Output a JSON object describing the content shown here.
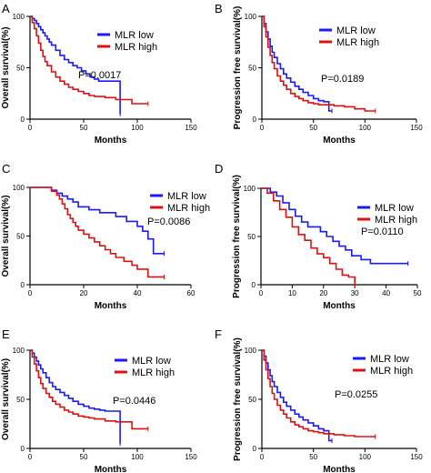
{
  "colors": {
    "low": "#1a1aff",
    "high": "#e01010",
    "axis": "#000000"
  },
  "chart_data": [
    {
      "id": "A",
      "panel_label": "A",
      "type": "line",
      "xlabel": "Months",
      "ylabel": "Overall survival(%)",
      "xlim": [
        0,
        150
      ],
      "ylim": [
        0,
        100
      ],
      "xticks": [
        0,
        50,
        100,
        150
      ],
      "yticks": [
        0,
        50,
        100
      ],
      "xtick_labels": [
        "0",
        "50",
        "100",
        "150"
      ],
      "ytick_labels": [
        "0",
        "50",
        "100"
      ],
      "legend": [
        "MLR low",
        "MLR high"
      ],
      "legend_position": "top-right",
      "p_value": "P=0.0017",
      "series": [
        {
          "name": "MLR low",
          "color_key": "low",
          "x": [
            0,
            2,
            4,
            6,
            8,
            10,
            12,
            14,
            16,
            18,
            20,
            24,
            28,
            32,
            36,
            40,
            44,
            48,
            52,
            56,
            60,
            64,
            84,
            84
          ],
          "y": [
            100,
            98,
            96,
            93,
            90,
            87,
            84,
            81,
            78,
            75,
            72,
            67,
            62,
            58,
            55,
            52,
            50,
            47,
            44,
            41,
            39,
            37,
            37,
            5
          ]
        },
        {
          "name": "MLR high",
          "color_key": "high",
          "x": [
            0,
            2,
            4,
            6,
            8,
            10,
            12,
            14,
            16,
            20,
            24,
            28,
            32,
            36,
            40,
            45,
            50,
            55,
            60,
            70,
            80,
            95,
            110
          ],
          "y": [
            100,
            94,
            88,
            81,
            74,
            67,
            61,
            56,
            52,
            46,
            41,
            37,
            34,
            31,
            29,
            27,
            25,
            23,
            22,
            21,
            19,
            15,
            15
          ]
        }
      ]
    },
    {
      "id": "B",
      "panel_label": "B",
      "type": "line",
      "xlabel": "Months",
      "ylabel": "Progression free survival(%)",
      "xlim": [
        0,
        150
      ],
      "ylim": [
        0,
        100
      ],
      "xticks": [
        0,
        50,
        100,
        150
      ],
      "yticks": [
        0,
        50,
        100
      ],
      "xtick_labels": [
        "0",
        "50",
        "100",
        "150"
      ],
      "ytick_labels": [
        "0",
        "50",
        "100"
      ],
      "legend": [
        "MLR low",
        "MLR high"
      ],
      "legend_position": "top-right",
      "p_value": "P=0.0189",
      "series": [
        {
          "name": "MLR low",
          "color_key": "low",
          "x": [
            0,
            2,
            4,
            6,
            8,
            10,
            12,
            15,
            18,
            21,
            24,
            28,
            32,
            36,
            40,
            45,
            50,
            55,
            60,
            65,
            65,
            68
          ],
          "y": [
            100,
            93,
            85,
            78,
            71,
            65,
            60,
            54,
            49,
            44,
            40,
            36,
            32,
            29,
            26,
            23,
            20,
            18,
            17,
            17,
            8,
            8
          ]
        },
        {
          "name": "MLR high",
          "color_key": "high",
          "x": [
            0,
            2,
            4,
            6,
            8,
            10,
            12,
            15,
            18,
            21,
            24,
            28,
            32,
            36,
            40,
            45,
            50,
            55,
            60,
            70,
            80,
            90,
            100,
            110
          ],
          "y": [
            100,
            90,
            80,
            70,
            62,
            55,
            49,
            42,
            37,
            33,
            29,
            25,
            22,
            20,
            18,
            16,
            15,
            14,
            14,
            13,
            12,
            10,
            8,
            8
          ]
        }
      ]
    },
    {
      "id": "C",
      "panel_label": "C",
      "type": "line",
      "xlabel": "Months",
      "ylabel": "Overall survival(%)",
      "xlim": [
        0,
        60
      ],
      "ylim": [
        0,
        100
      ],
      "xticks": [
        0,
        20,
        40,
        60
      ],
      "yticks": [
        0,
        50,
        100
      ],
      "xtick_labels": [
        "0",
        "20",
        "40",
        "60"
      ],
      "ytick_labels": [
        "0",
        "50",
        "100"
      ],
      "legend": [
        "MLR low",
        "MLR high"
      ],
      "legend_position": "top-right",
      "p_value": "P=0.0086",
      "series": [
        {
          "name": "MLR low",
          "color_key": "low",
          "x": [
            0,
            6,
            8,
            10,
            12,
            14,
            16,
            18,
            22,
            26,
            30,
            32,
            36,
            40,
            42,
            44,
            46,
            46,
            50
          ],
          "y": [
            100,
            100,
            97,
            94,
            91,
            88,
            85,
            80,
            77,
            74,
            74,
            70,
            65,
            60,
            55,
            47,
            47,
            32,
            32
          ]
        },
        {
          "name": "MLR high",
          "color_key": "high",
          "x": [
            0,
            6,
            8,
            10,
            11,
            12,
            13,
            14,
            15,
            16,
            17,
            18,
            20,
            22,
            24,
            26,
            28,
            30,
            32,
            35,
            38,
            40,
            44,
            50
          ],
          "y": [
            100,
            100,
            96,
            92,
            88,
            83,
            78,
            72,
            68,
            64,
            60,
            56,
            52,
            48,
            44,
            40,
            36,
            32,
            28,
            24,
            20,
            16,
            8,
            8
          ]
        }
      ]
    },
    {
      "id": "D",
      "panel_label": "D",
      "type": "line",
      "xlabel": "Months",
      "ylabel": "Progression free survival(%)",
      "xlim": [
        0,
        50
      ],
      "ylim": [
        0,
        100
      ],
      "xticks": [
        0,
        10,
        20,
        30,
        40,
        50
      ],
      "yticks": [
        0,
        50,
        100
      ],
      "xtick_labels": [
        "0",
        "10",
        "20",
        "30",
        "40",
        "50"
      ],
      "ytick_labels": [
        "0",
        "50",
        "100"
      ],
      "legend": [
        "MLR low",
        "MLR high"
      ],
      "legend_position": "top-right",
      "p_value": "P=0.0110",
      "series": [
        {
          "name": "MLR low",
          "color_key": "low",
          "x": [
            0,
            3,
            5,
            7,
            9,
            11,
            13,
            15,
            17,
            19,
            21,
            23,
            25,
            27,
            29,
            32,
            35,
            38,
            47
          ],
          "y": [
            100,
            96,
            92,
            85,
            78,
            71,
            65,
            60,
            60,
            55,
            50,
            45,
            40,
            36,
            30,
            26,
            22,
            22,
            22
          ]
        },
        {
          "name": "MLR high",
          "color_key": "high",
          "x": [
            0,
            2,
            4,
            6,
            8,
            10,
            12,
            14,
            16,
            18,
            20,
            22,
            24,
            26,
            28,
            30
          ],
          "y": [
            100,
            95,
            87,
            78,
            70,
            60,
            52,
            46,
            38,
            32,
            28,
            22,
            16,
            10,
            8,
            0
          ]
        }
      ]
    },
    {
      "id": "E",
      "panel_label": "E",
      "type": "line",
      "xlabel": "Months",
      "ylabel": "Overall survival(%)",
      "xlim": [
        0,
        150
      ],
      "ylim": [
        0,
        100
      ],
      "xticks": [
        0,
        50,
        100,
        150
      ],
      "yticks": [
        0,
        50,
        100
      ],
      "xtick_labels": [
        "0",
        "50",
        "100",
        "150"
      ],
      "ytick_labels": [
        "0",
        "50",
        "100"
      ],
      "legend": [
        "MLR low",
        "MLR high"
      ],
      "legend_position": "top-right",
      "p_value": "P=0.0446",
      "series": [
        {
          "name": "MLR low",
          "color_key": "low",
          "x": [
            0,
            2,
            4,
            6,
            8,
            10,
            12,
            15,
            18,
            21,
            24,
            28,
            32,
            36,
            40,
            45,
            50,
            55,
            60,
            65,
            70,
            84,
            84
          ],
          "y": [
            100,
            97,
            93,
            89,
            85,
            81,
            77,
            72,
            67,
            63,
            60,
            57,
            54,
            51,
            48,
            45,
            43,
            41,
            40,
            39,
            38,
            38,
            5
          ]
        },
        {
          "name": "MLR high",
          "color_key": "high",
          "x": [
            0,
            2,
            4,
            6,
            8,
            10,
            12,
            15,
            18,
            21,
            24,
            28,
            32,
            36,
            40,
            45,
            50,
            55,
            60,
            70,
            80,
            95,
            110
          ],
          "y": [
            100,
            93,
            86,
            79,
            72,
            66,
            61,
            56,
            52,
            48,
            45,
            42,
            39,
            37,
            35,
            33,
            32,
            31,
            30,
            28,
            27,
            20,
            20
          ]
        }
      ]
    },
    {
      "id": "F",
      "panel_label": "F",
      "type": "line",
      "xlabel": "Months",
      "ylabel": "Progression free survival(%)",
      "xlim": [
        0,
        150
      ],
      "ylim": [
        0,
        100
      ],
      "xticks": [
        0,
        50,
        100,
        150
      ],
      "yticks": [
        0,
        50,
        100
      ],
      "xtick_labels": [
        "0",
        "50",
        "100",
        "150"
      ],
      "ytick_labels": [
        "0",
        "50",
        "100"
      ],
      "legend": [
        "MLR low",
        "MLR high"
      ],
      "legend_position": "top-right",
      "p_value": "P=0.0255",
      "series": [
        {
          "name": "MLR low",
          "color_key": "low",
          "x": [
            0,
            2,
            4,
            6,
            8,
            10,
            12,
            15,
            18,
            21,
            24,
            28,
            32,
            36,
            40,
            45,
            50,
            55,
            60,
            65,
            65,
            68
          ],
          "y": [
            100,
            94,
            87,
            80,
            74,
            68,
            63,
            57,
            52,
            47,
            43,
            39,
            35,
            32,
            29,
            26,
            23,
            20,
            18,
            17,
            8,
            8
          ]
        },
        {
          "name": "MLR high",
          "color_key": "high",
          "x": [
            0,
            2,
            4,
            6,
            8,
            10,
            12,
            15,
            18,
            21,
            24,
            28,
            32,
            36,
            40,
            45,
            50,
            55,
            60,
            70,
            80,
            90,
            100,
            110
          ],
          "y": [
            100,
            90,
            80,
            71,
            63,
            56,
            50,
            44,
            39,
            35,
            31,
            27,
            24,
            22,
            20,
            18,
            17,
            16,
            15,
            14,
            13,
            12,
            12,
            12
          ]
        }
      ]
    }
  ]
}
